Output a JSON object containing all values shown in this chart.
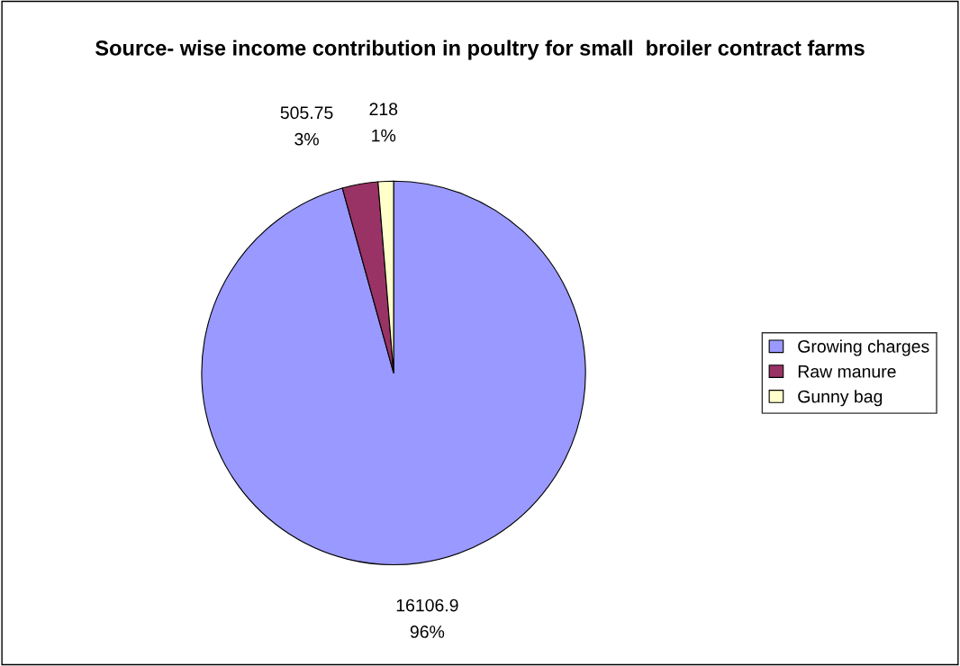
{
  "chart_data": {
    "type": "pie",
    "title": "Source- wise income contribution in poultry for small  broiler contract farms",
    "categories": [
      "Growing charges",
      "Raw manure",
      "Gunny bag"
    ],
    "values": [
      16106.9,
      505.75,
      218
    ],
    "colors": [
      "#9999ff",
      "#993366",
      "#ffffcc"
    ],
    "value_labels": [
      "16106.9\n96%",
      "505.75\n3%",
      "218\n1%"
    ],
    "legend": "right"
  }
}
